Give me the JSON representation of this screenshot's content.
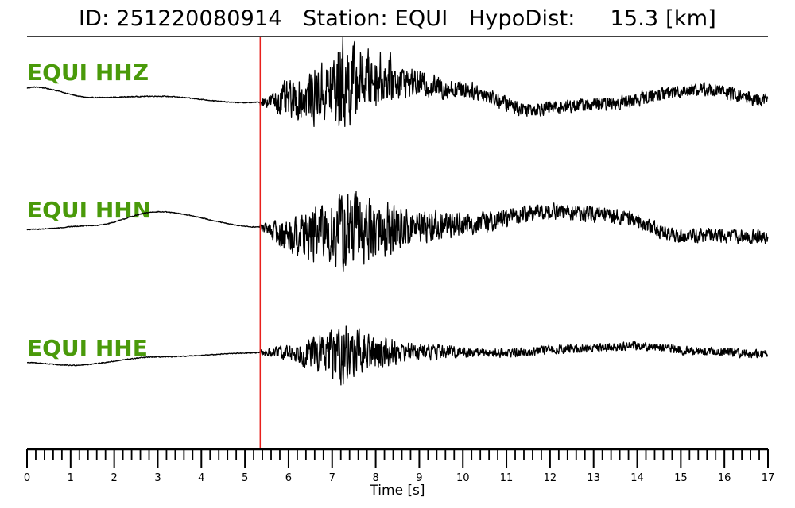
{
  "title": "ID: 251220080914   Station: EQUI   HypoDist:     15.3 [km]",
  "chart_data": {
    "type": "line",
    "xlabel": "Time [s]",
    "xlim": [
      0,
      17
    ],
    "x_ticks": [
      "0",
      "1",
      "2",
      "3",
      "4",
      "5",
      "6",
      "7",
      "8",
      "9",
      "10",
      "11",
      "12",
      "13",
      "14",
      "15",
      "16",
      "17"
    ],
    "minor_tick_step": 0.2,
    "pick_time_s": 5.35,
    "pick_color": "#e8201c",
    "trace_color": "#000000",
    "label_color": "#4a9a0a",
    "grid": false,
    "series": [
      {
        "name": "EQUI HHZ",
        "envelope": [
          [
            0,
            0.2
          ],
          [
            5.4,
            0.2
          ],
          [
            6,
            0.8
          ],
          [
            6.8,
            1.3
          ],
          [
            7.2,
            2.1
          ],
          [
            7.8,
            1.3
          ],
          [
            9,
            0.55
          ],
          [
            10.5,
            0.35
          ],
          [
            12,
            0.3
          ],
          [
            17,
            0.3
          ]
        ],
        "baseline": [
          [
            0,
            0.55
          ],
          [
            0.15,
            0.58
          ],
          [
            1.5,
            0.2
          ],
          [
            3,
            0.25
          ],
          [
            5,
            0.02
          ],
          [
            6,
            0.1
          ],
          [
            8,
            0.9
          ],
          [
            10,
            0.5
          ],
          [
            11.5,
            -0.2
          ],
          [
            13,
            -0.05
          ],
          [
            15.5,
            0.5
          ],
          [
            17,
            0.1
          ]
        ]
      },
      {
        "name": "EQUI HHN",
        "envelope": [
          [
            0,
            0.2
          ],
          [
            5.4,
            0.2
          ],
          [
            6,
            0.8
          ],
          [
            7,
            1.4
          ],
          [
            7.3,
            1.9
          ],
          [
            8,
            1.4
          ],
          [
            9,
            0.7
          ],
          [
            10.5,
            0.45
          ],
          [
            12,
            0.35
          ],
          [
            17,
            0.3
          ]
        ],
        "baseline": [
          [
            0,
            0.3
          ],
          [
            0.15,
            0.32
          ],
          [
            1.5,
            0.45
          ],
          [
            3,
            0.95
          ],
          [
            5.3,
            0.4
          ],
          [
            6,
            0.1
          ],
          [
            8,
            0.3
          ],
          [
            10,
            0.5
          ],
          [
            12,
            0.95
          ],
          [
            13.5,
            0.8
          ],
          [
            15,
            0.1
          ],
          [
            17,
            0.05
          ]
        ]
      },
      {
        "name": "EQUI HHE",
        "envelope": [
          [
            0,
            0.15
          ],
          [
            5.4,
            0.15
          ],
          [
            6,
            0.35
          ],
          [
            6.8,
            0.85
          ],
          [
            7.2,
            1.3
          ],
          [
            7.8,
            0.8
          ],
          [
            9,
            0.35
          ],
          [
            10.5,
            0.2
          ],
          [
            12,
            0.2
          ],
          [
            17,
            0.18
          ]
        ],
        "baseline": [
          [
            0,
            0.15
          ],
          [
            1,
            0.05
          ],
          [
            3,
            0.35
          ],
          [
            5.3,
            0.5
          ],
          [
            7,
            0.5
          ],
          [
            9,
            0.55
          ],
          [
            11,
            0.5
          ],
          [
            12.5,
            0.65
          ],
          [
            14,
            0.75
          ],
          [
            15.5,
            0.55
          ],
          [
            17,
            0.45
          ]
        ]
      }
    ]
  }
}
